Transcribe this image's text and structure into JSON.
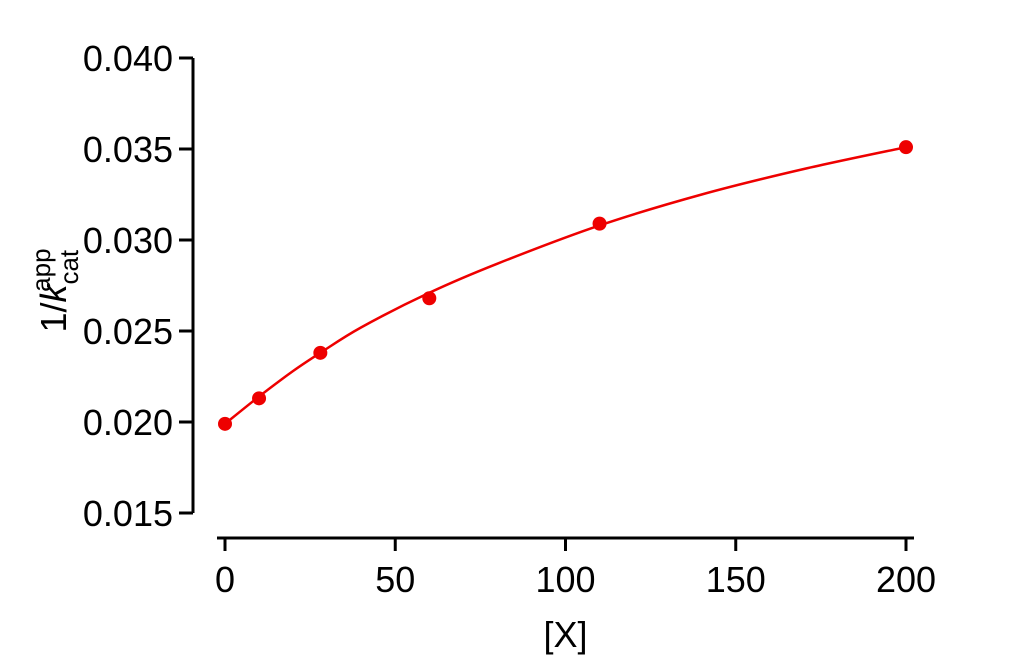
{
  "chart_data": {
    "type": "scatter",
    "title": "",
    "xlabel": "[X]",
    "ylabel": {
      "prefix": "1/",
      "italic": "k",
      "subscript": "cat",
      "superscript": "app"
    },
    "xlim": [
      0,
      200
    ],
    "ylim": [
      0.015,
      0.04
    ],
    "x_ticks": [
      0,
      50,
      100,
      150,
      200
    ],
    "x_tick_labels": [
      "0",
      "50",
      "100",
      "150",
      "200"
    ],
    "y_ticks": [
      0.015,
      0.02,
      0.025,
      0.03,
      0.035,
      0.04
    ],
    "y_tick_labels": [
      "0.015",
      "0.020",
      "0.025",
      "0.030",
      "0.035",
      "0.040"
    ],
    "grid": false,
    "legend": "none",
    "series": [
      {
        "kind": "points",
        "color": "#ee0000",
        "x": [
          0,
          10,
          28,
          60,
          110,
          200
        ],
        "y": [
          0.0199,
          0.0213,
          0.0238,
          0.0268,
          0.0309,
          0.0351
        ]
      },
      {
        "kind": "fit-curve",
        "color": "#ee0000",
        "x": [
          0,
          10,
          20,
          28,
          40,
          60,
          80,
          110,
          140,
          170,
          200
        ],
        "y": [
          0.0199,
          0.0214,
          0.0228,
          0.0238,
          0.0252,
          0.0271,
          0.0287,
          0.0308,
          0.0325,
          0.0339,
          0.0351
        ]
      }
    ]
  }
}
